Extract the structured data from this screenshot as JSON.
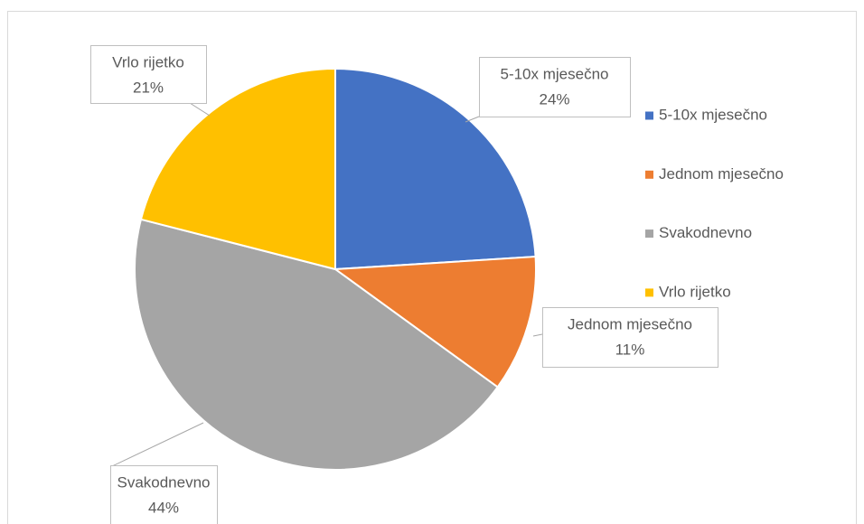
{
  "chart_data": {
    "type": "pie",
    "categories": [
      "5-10x mjesečno",
      "Jednom mjesečno",
      "Svakodnevno",
      "Vrlo rijetko"
    ],
    "values": [
      24,
      11,
      44,
      21
    ],
    "value_labels": [
      "24%",
      "11%",
      "44%",
      "21%"
    ],
    "colors": [
      "#4472c4",
      "#ed7d31",
      "#a5a5a5",
      "#ffc000"
    ],
    "legend": "right"
  }
}
